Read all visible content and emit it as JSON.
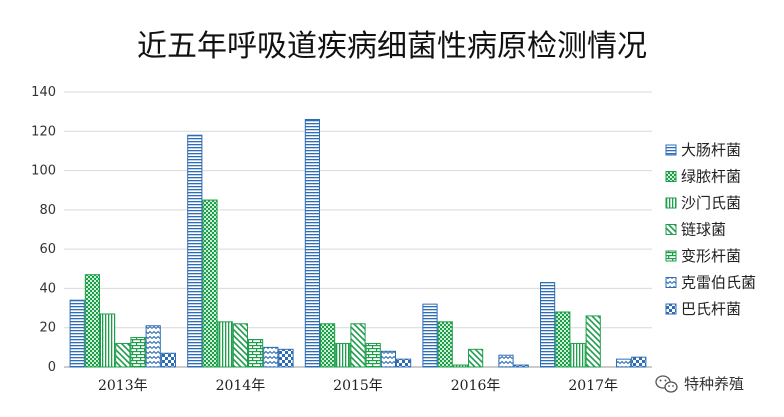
{
  "chart_data": {
    "type": "bar",
    "title": "近五年呼吸道疾病细菌性病原检测情况",
    "xlabel": "",
    "ylabel": "",
    "ylim": [
      0,
      140
    ],
    "yticks": [
      0,
      20,
      40,
      60,
      80,
      100,
      120,
      140
    ],
    "grid": true,
    "legend_position": "right",
    "categories": [
      "2013年",
      "2014年",
      "2015年",
      "2016年",
      "2017年"
    ],
    "series": [
      {
        "name": "大肠杆菌",
        "color": "#2e6db4",
        "pattern": "horizontal-lines",
        "values": [
          34,
          118,
          126,
          32,
          43
        ]
      },
      {
        "name": "绿脓杆菌",
        "color": "#1e9e4a",
        "pattern": "dense-grid",
        "values": [
          47,
          85,
          22,
          23,
          28
        ]
      },
      {
        "name": "沙门氏菌",
        "color": "#1e9e4a",
        "pattern": "vertical-lines",
        "values": [
          27,
          23,
          12,
          1,
          12
        ]
      },
      {
        "name": "链球菌",
        "color": "#1e9e4a",
        "pattern": "diagonal-lines",
        "values": [
          12,
          22,
          22,
          9,
          26
        ]
      },
      {
        "name": "变形杆菌",
        "color": "#1e9e4a",
        "pattern": "horizontal-bricks",
        "values": [
          15,
          14,
          12,
          0,
          0
        ]
      },
      {
        "name": "克雷伯氏菌",
        "color": "#2e6db4",
        "pattern": "zigzag",
        "values": [
          21,
          10,
          8,
          6,
          4
        ]
      },
      {
        "name": "巴氏杆菌",
        "color": "#2e6db4",
        "pattern": "large-checker",
        "values": [
          7,
          9,
          4,
          1,
          5
        ]
      }
    ]
  },
  "watermark": {
    "icon": "wechat-icon",
    "text": "特种养殖"
  }
}
